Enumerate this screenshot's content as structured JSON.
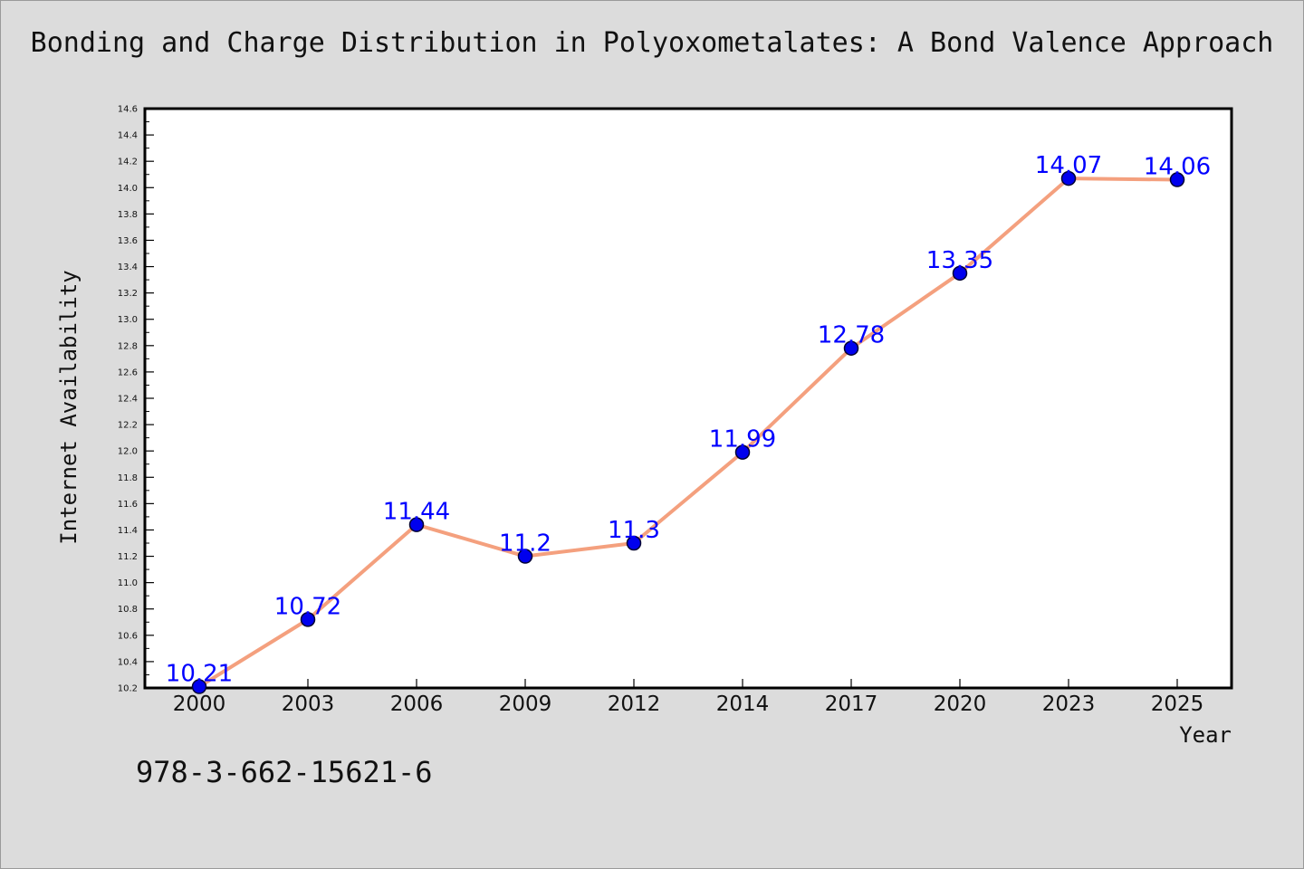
{
  "page": {
    "title": "Bonding and Charge Distribution in Polyoxometalates: A Bond Valence Approach",
    "isbn": "978-3-662-15621-6"
  },
  "chart_data": {
    "type": "line",
    "title": "Bonding and Charge Distribution in Polyoxometalates: A Bond Valence Approach",
    "xlabel": "Year",
    "ylabel": "Internet Availability",
    "categories": [
      "2000",
      "2003",
      "2006",
      "2009",
      "2012",
      "2014",
      "2017",
      "2020",
      "2023",
      "2025"
    ],
    "series": [
      {
        "values": [
          10.21,
          10.72,
          11.44,
          11.2,
          11.3,
          11.99,
          12.78,
          13.35,
          14.07,
          14.06
        ],
        "data_labels": [
          "10.21",
          "10.72",
          "11.44",
          "11.2",
          "11.3",
          "11.99",
          "12.78",
          "13.35",
          "14.07",
          "14.06"
        ]
      }
    ],
    "ylim": [
      10.2,
      14.6
    ],
    "yticks": [
      "10.2",
      "10.4",
      "10.6",
      "10.8",
      "11.0",
      "11.2",
      "11.4",
      "11.6",
      "11.8",
      "12.0",
      "12.2",
      "12.4",
      "12.6",
      "12.8",
      "13.0",
      "13.2",
      "13.4",
      "13.6",
      "13.8",
      "14.0",
      "14.2",
      "14.4",
      "14.6"
    ],
    "grid": false,
    "legend": "none",
    "colors": {
      "line": "#f4a07e",
      "marker_fill": "#0000ee",
      "marker_edge": "#000033",
      "data_label": "#0000ff",
      "plot_background": "#ffffff",
      "figure_background": "#dcdcdc"
    }
  }
}
